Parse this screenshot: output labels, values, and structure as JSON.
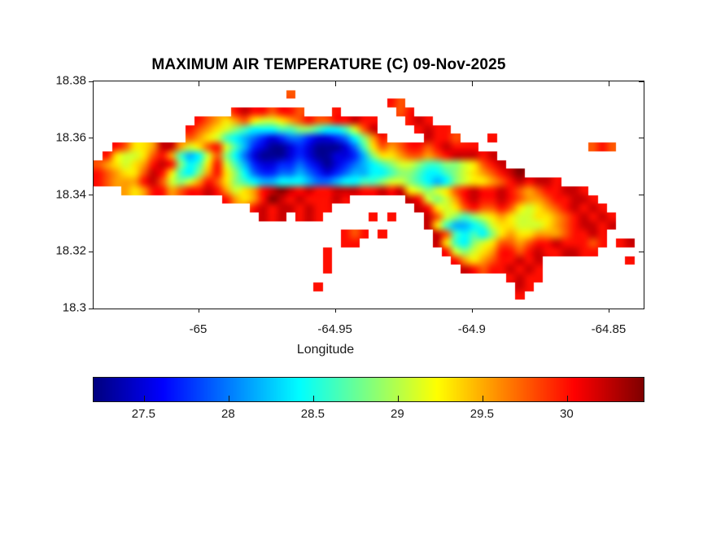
{
  "chart_data": {
    "type": "heatmap",
    "title": "MAXIMUM AIR TEMPERATURE (C) 09-Nov-2025",
    "xlabel": "Longitude",
    "ylabel": "",
    "units": "C",
    "xlim": [
      -65.0385,
      -64.8375
    ],
    "ylim": [
      18.3,
      18.38
    ],
    "x_ticks": [
      -65,
      -64.95,
      -64.9,
      -64.85
    ],
    "x_tick_labels": [
      "-65",
      "-64.95",
      "-64.9",
      "-64.85"
    ],
    "y_ticks": [
      18.38,
      18.36,
      18.34,
      18.32,
      18.3
    ],
    "y_tick_labels": [
      "18.38",
      "18.36",
      "18.34",
      "18.32",
      "18.3"
    ],
    "grid_lines": false,
    "colormap": "jet",
    "color_axis": [
      27.2,
      30.45
    ],
    "colorbar": {
      "orientation": "horizontal",
      "ticks": [
        27.5,
        28,
        28.5,
        29,
        29.5,
        30
      ],
      "tick_labels": [
        "27.5",
        "28",
        "28.5",
        "29",
        "29.5",
        "30"
      ]
    },
    "grid": {
      "cols": 60,
      "rows": 26,
      "water_char": ".",
      "level_chars": "0123456789abcde",
      "level_values": [
        27.27,
        27.49,
        27.72,
        27.95,
        28.18,
        28.4,
        28.63,
        28.86,
        29.09,
        29.31,
        29.54,
        29.77,
        30.0,
        30.22,
        30.45
      ],
      "rows_data": [
        [],
        [
          [
            21,
            "b"
          ]
        ],
        [
          [
            32,
            "cb"
          ]
        ],
        [
          [
            15,
            "cdccbccb"
          ],
          [
            26,
            "c"
          ],
          [
            33,
            "bc"
          ]
        ],
        [
          [
            11,
            "cba9ab9889abcbbccdcc"
          ],
          [
            34,
            "cdc"
          ]
        ],
        [
          [
            10,
            "cba9876555667765568bd"
          ],
          [
            35,
            "cdcc"
          ]
        ],
        [
          [
            10,
            "ba986543212332112357ac"
          ],
          [
            36,
            "dccb"
          ],
          [
            43,
            "c"
          ]
        ],
        [
          [
            2,
            "cb99adda89bc86421001210001369babccbcdccc"
          ],
          [
            54,
            "bcb"
          ]
        ],
        [
          [
            1,
            "c9889bca6458b7531000121001124799abbabcdddcd"
          ]
        ],
        [
          [
            0,
            "ba989acdc7569c8642112232101234567887667789bcd"
          ]
        ],
        [
          [
            0,
            "cba99bdc9657ac9753223343212344556776556789abcde"
          ]
        ],
        [
          [
            0,
            "cbaaacdb878acb97654455543345566788765457899abcdcddc"
          ]
        ],
        [
          [
            3,
            "a9accabccdca89acdedcdccdddccdcd98789bcdccdcbabccddc"
          ]
        ],
        [
          [
            14,
            "ca9acedcdcccdc"
          ],
          [
            34,
            "dc878acdccdcbaabccddc"
          ]
        ],
        [
          [
            17,
            "cdcddcdcc"
          ],
          [
            35,
            "dc989bcbbcb989abcdcdc"
          ]
        ],
        [
          [
            18,
            "dcd"
          ],
          [
            22,
            "cdc"
          ],
          [
            30,
            "c"
          ],
          [
            32,
            "c"
          ],
          [
            36,
            "db876789a98899abcdcdc"
          ]
        ],
        [
          [
            36,
            "d9644568998889abcddcd"
          ]
        ],
        [
          [
            27,
            "cbc"
          ],
          [
            31,
            "c"
          ],
          [
            37,
            "db656579a99aaabccdc"
          ]
        ],
        [
          [
            27,
            "cc"
          ],
          [
            37,
            "d965789bbabccdcccbc"
          ],
          [
            57,
            "cd"
          ]
        ],
        [
          [
            25,
            "c"
          ],
          [
            38,
            "c8789accbcdccddcc"
          ]
        ],
        [
          [
            25,
            "c"
          ],
          [
            39,
            "ca9abccdcd"
          ],
          [
            58,
            "c"
          ]
        ],
        [
          [
            25,
            "c"
          ],
          [
            40,
            "dcbccdcdc"
          ]
        ],
        [
          [
            45,
            "cdcc"
          ]
        ],
        [
          [
            24,
            "c"
          ],
          [
            46,
            "dc"
          ]
        ],
        [
          [
            46,
            "c"
          ]
        ],
        []
      ]
    }
  }
}
